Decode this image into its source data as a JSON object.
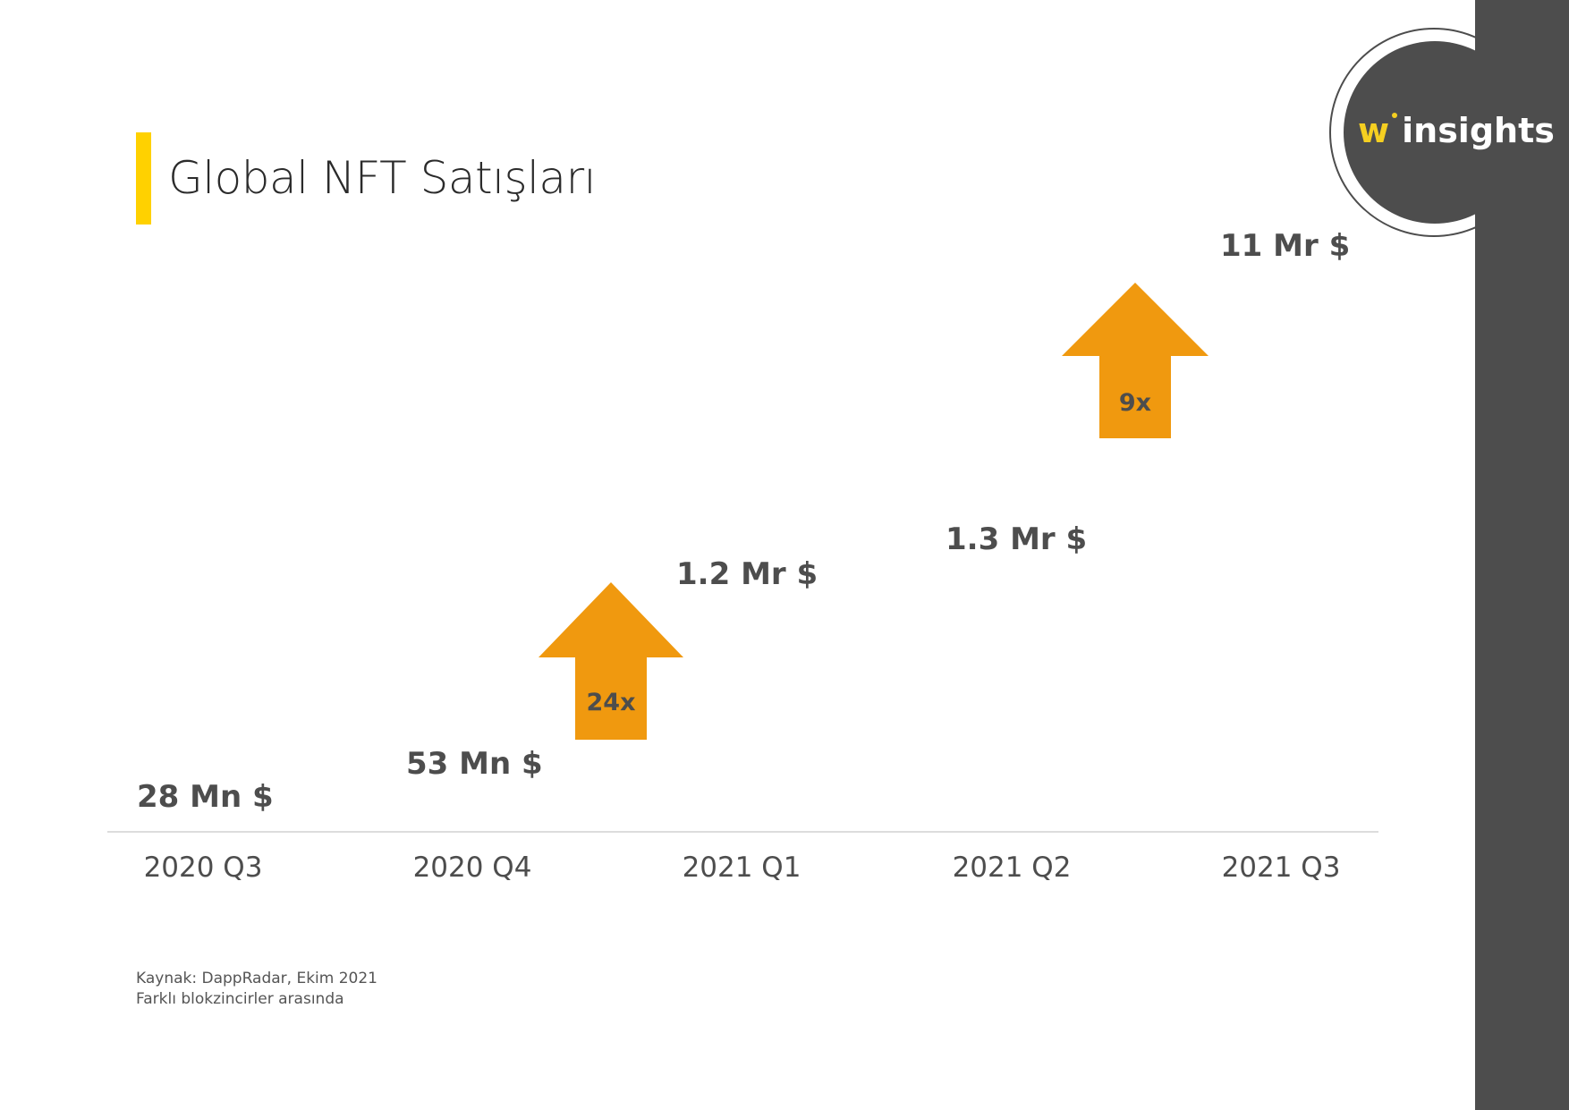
{
  "title": "Global NFT Satışları",
  "colors": {
    "accent_bar": "#FFD100",
    "arrow": "#F0990F",
    "text": "#4D4D4D",
    "panel": "#4D4D4D",
    "logo_w": "#F5CF21"
  },
  "logo": {
    "w": "w",
    "text": "insights"
  },
  "chart_data": {
    "type": "bar",
    "categories": [
      "2020 Q3",
      "2020 Q4",
      "2021 Q1",
      "2021 Q2",
      "2021 Q3"
    ],
    "values_label": [
      "28 Mn $",
      "53 Mn $",
      "1.2 Mr $",
      "1.3 Mr $",
      "11 Mr $"
    ],
    "values_usd_million": [
      28,
      53,
      1200,
      1300,
      11000
    ],
    "growth_markers": [
      {
        "between": [
          "2020 Q4",
          "2021 Q1"
        ],
        "label": "24x"
      },
      {
        "between": [
          "2021 Q2",
          "2021 Q3"
        ],
        "label": "9x"
      }
    ]
  },
  "footnote": [
    "Kaynak: DappRadar, Ekim 2021",
    "Farklı blokzincirler arasında"
  ]
}
